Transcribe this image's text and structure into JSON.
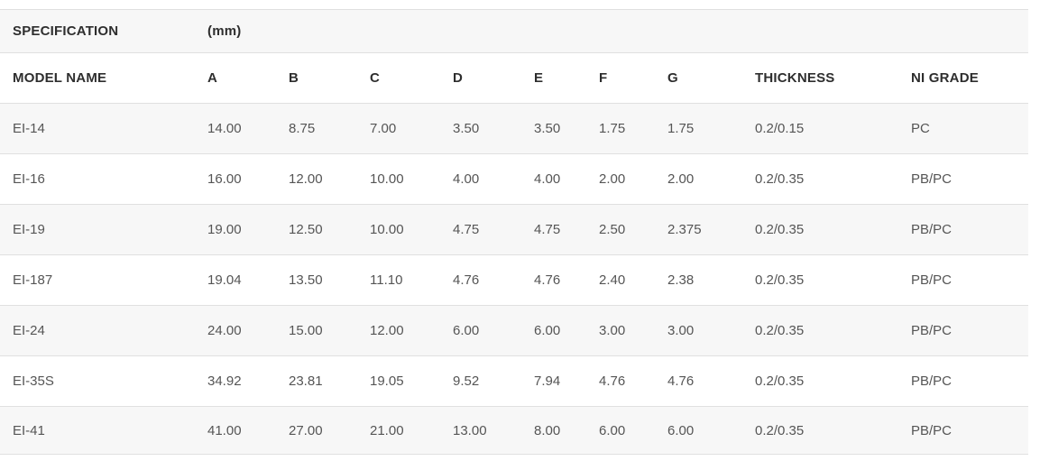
{
  "table": {
    "section_header": {
      "label": "SPECIFICATION",
      "unit": "(mm)"
    },
    "columns": [
      "MODEL NAME",
      "A",
      "B",
      "C",
      "D",
      "E",
      "F",
      "G",
      "THICKNESS",
      "NI GRADE"
    ],
    "rows": [
      [
        "EI-14",
        "14.00",
        "8.75",
        "7.00",
        "3.50",
        "3.50",
        "1.75",
        "1.75",
        "0.2/0.15",
        "PC"
      ],
      [
        "EI-16",
        "16.00",
        "12.00",
        "10.00",
        "4.00",
        "4.00",
        "2.00",
        "2.00",
        "0.2/0.35",
        "PB/PC"
      ],
      [
        "EI-19",
        "19.00",
        "12.50",
        "10.00",
        "4.75",
        "4.75",
        "2.50",
        "2.375",
        "0.2/0.35",
        "PB/PC"
      ],
      [
        "EI-187",
        "19.04",
        "13.50",
        "11.10",
        "4.76",
        "4.76",
        "2.40",
        "2.38",
        "0.2/0.35",
        "PB/PC"
      ],
      [
        "EI-24",
        "24.00",
        "15.00",
        "12.00",
        "6.00",
        "6.00",
        "3.00",
        "3.00",
        "0.2/0.35",
        "PB/PC"
      ],
      [
        "EI-35S",
        "34.92",
        "23.81",
        "19.05",
        "9.52",
        "7.94",
        "4.76",
        "4.76",
        "0.2/0.35",
        "PB/PC"
      ],
      [
        "EI-41",
        "41.00",
        "27.00",
        "21.00",
        "13.00",
        "8.00",
        "6.00",
        "6.00",
        "0.2/0.35",
        "PB/PC"
      ]
    ],
    "colors": {
      "stripe": "#f7f7f7",
      "border": "#e0e0e0",
      "header_text": "#2e2e2e",
      "body_text": "#555555"
    }
  }
}
